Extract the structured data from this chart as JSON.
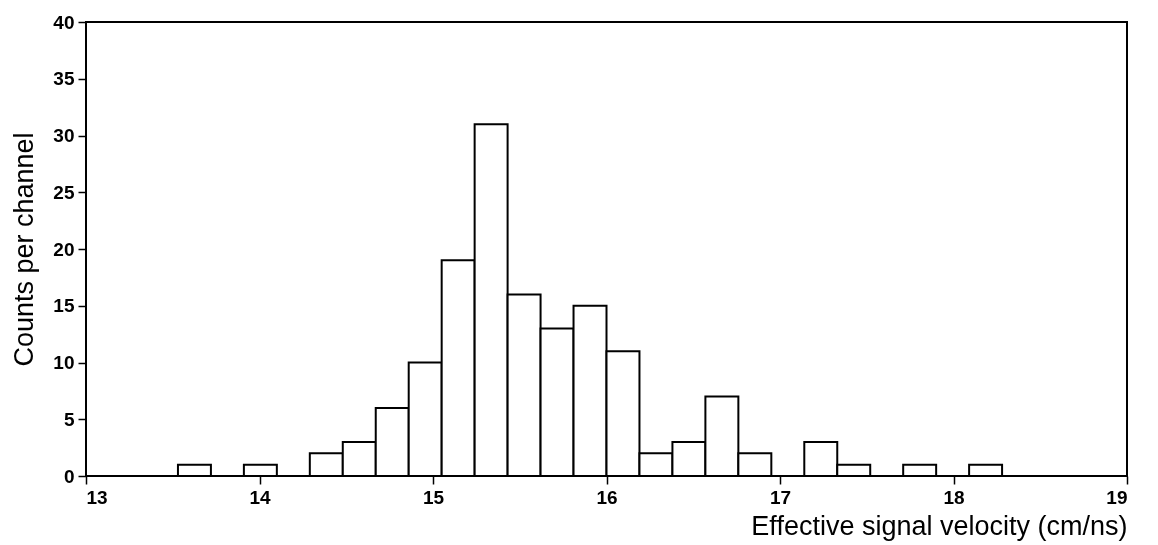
{
  "chart_data": {
    "type": "histogram",
    "xlabel": "Effective signal velocity (cm/ns)",
    "ylabel": "Counts per channel",
    "bins": [
      13.53,
      13.72,
      13.91,
      14.1,
      14.29,
      14.48,
      14.67,
      14.86,
      15.05,
      15.24,
      15.43,
      15.62,
      15.81,
      16.0,
      16.19,
      16.38,
      16.57,
      16.76,
      16.95,
      17.14,
      17.33,
      17.52,
      17.71,
      17.9,
      18.09,
      18.28
    ],
    "values": [
      1,
      0,
      1,
      0,
      2,
      3,
      6,
      10,
      19,
      31,
      16,
      13,
      15,
      11,
      2,
      3,
      7,
      2,
      0,
      3,
      1,
      0,
      1,
      0,
      1
    ],
    "color": "#000000",
    "xlim": [
      13,
      19
    ],
    "xticks": [
      13,
      14,
      15,
      16,
      17,
      18,
      19
    ],
    "ylim": [
      0,
      40
    ],
    "yticks": [
      0,
      5,
      10,
      15,
      20,
      25,
      30,
      35,
      40
    ],
    "grid": false
  }
}
